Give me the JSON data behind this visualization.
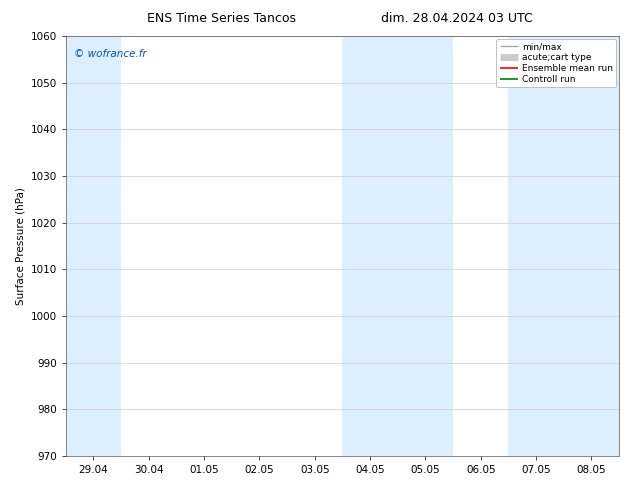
{
  "title_left": "ENS Time Series Tancos",
  "title_right": "dim. 28.04.2024 03 UTC",
  "ylabel": "Surface Pressure (hPa)",
  "ylim": [
    970,
    1060
  ],
  "yticks": [
    970,
    980,
    990,
    1000,
    1010,
    1020,
    1030,
    1040,
    1050,
    1060
  ],
  "xtick_labels": [
    "29.04",
    "30.04",
    "01.05",
    "02.05",
    "03.05",
    "04.05",
    "05.05",
    "06.05",
    "07.05",
    "08.05"
  ],
  "watermark": "© wofrance.fr",
  "watermark_color": "#0055cc",
  "background_color": "#ffffff",
  "shaded_color": "#ddeeff",
  "shaded_bands": [
    {
      "xstart": 0,
      "xend": 1
    },
    {
      "xstart": 5,
      "xend": 7
    },
    {
      "xstart": 8,
      "xend": 10
    }
  ],
  "legend_items": [
    {
      "label": "min/max",
      "color": "#aaaaaa",
      "lw": 1.0
    },
    {
      "label": "acute;cart type",
      "color": "#cccccc",
      "lw": 5
    },
    {
      "label": "Ensemble mean run",
      "color": "#ff0000",
      "lw": 1.2
    },
    {
      "label": "Controll run",
      "color": "#008000",
      "lw": 1.2
    }
  ],
  "grid_color": "#cccccc",
  "title_fontsize": 9,
  "axis_label_fontsize": 7.5,
  "tick_fontsize": 7.5
}
